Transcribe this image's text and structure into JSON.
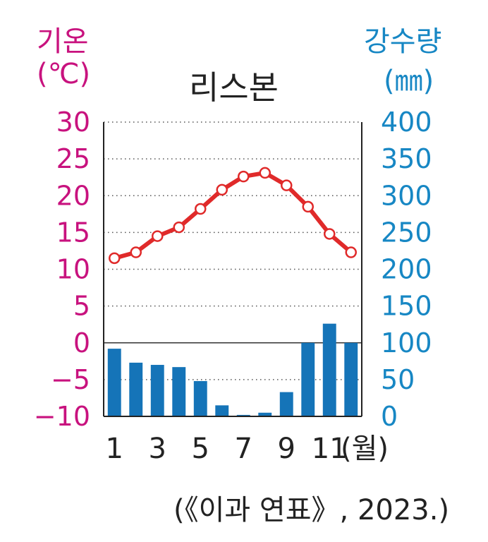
{
  "chart_data": {
    "type": "bar+line",
    "title": "리스본",
    "temp_axis": {
      "label": "기온",
      "unit": "(℃)",
      "ylim": [
        -10,
        30
      ],
      "ticks": [
        "30",
        "25",
        "20",
        "15",
        "10",
        "5",
        "0",
        "−5",
        "−10"
      ],
      "color": "#c8127e"
    },
    "rain_axis": {
      "label": "강수량",
      "unit": "(㎜)",
      "ylim": [
        0,
        400
      ],
      "ticks": [
        "400",
        "350",
        "300",
        "250",
        "200",
        "150",
        "100",
        "50",
        "0"
      ],
      "color": "#1787c4"
    },
    "x_ticks": [
      "1",
      "3",
      "5",
      "7",
      "9",
      "11"
    ],
    "x_unit": "(월)",
    "months": [
      1,
      2,
      3,
      4,
      5,
      6,
      7,
      8,
      9,
      10,
      11,
      12
    ],
    "temperature": [
      11.5,
      12.3,
      14.5,
      15.7,
      18.2,
      20.8,
      22.6,
      23.1,
      21.4,
      18.5,
      14.8,
      12.3
    ],
    "precipitation": [
      92,
      73,
      70,
      67,
      48,
      15,
      2,
      5,
      33,
      100,
      126,
      100
    ],
    "line_color": "#e02a2a",
    "bar_color": "#1574b8",
    "grid": "dotted"
  },
  "source": "(《이과 연표》, 2023.)"
}
